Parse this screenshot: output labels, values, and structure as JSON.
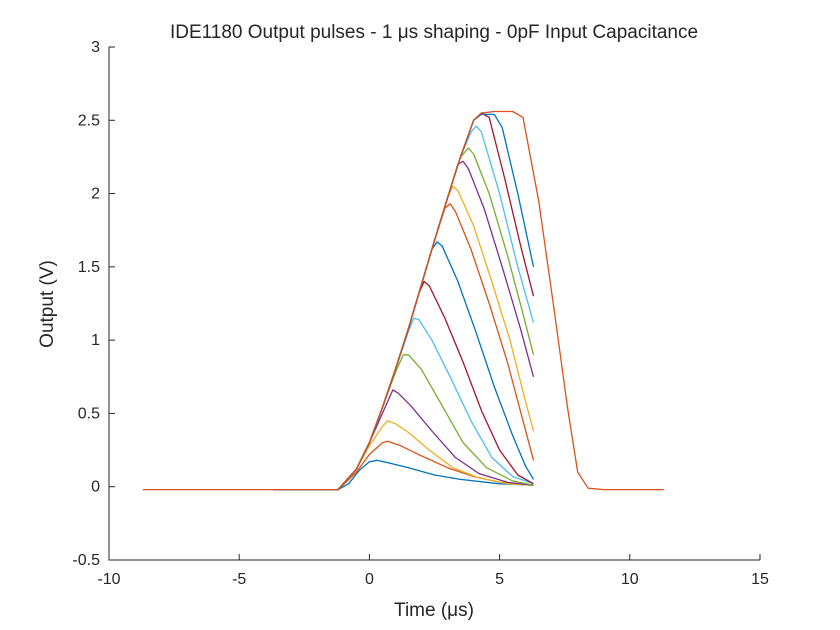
{
  "chart_data": {
    "type": "line",
    "title": "IDE1180 Output pulses - 1 μs shaping - 0pF Input Capacitance",
    "xlabel": "Time (μs)",
    "ylabel": "Output (V)",
    "xlim": [
      -10,
      15
    ],
    "ylim": [
      -0.5,
      3
    ],
    "xticks": [
      -10,
      -5,
      0,
      5,
      10,
      15
    ],
    "yticks": [
      -0.5,
      0,
      0.5,
      1,
      1.5,
      2,
      2.5,
      3
    ],
    "grid": false,
    "legend": "none",
    "series": [
      {
        "color": "#0072BD",
        "points": [
          [
            -3.7,
            -0.02
          ],
          [
            -1.2,
            -0.02
          ],
          [
            -0.8,
            0.02
          ],
          [
            -0.4,
            0.11
          ],
          [
            0.0,
            0.17
          ],
          [
            0.3,
            0.18
          ],
          [
            0.8,
            0.16
          ],
          [
            1.5,
            0.13
          ],
          [
            2.5,
            0.08
          ],
          [
            3.5,
            0.05
          ],
          [
            5.0,
            0.02
          ],
          [
            6.3,
            0.01
          ]
        ]
      },
      {
        "color": "#D95319",
        "points": [
          [
            -3.7,
            -0.02
          ],
          [
            -1.2,
            -0.02
          ],
          [
            -0.5,
            0.1
          ],
          [
            0.0,
            0.22
          ],
          [
            0.5,
            0.3
          ],
          [
            0.7,
            0.31
          ],
          [
            1.2,
            0.28
          ],
          [
            2.0,
            0.21
          ],
          [
            3.0,
            0.13
          ],
          [
            4.0,
            0.07
          ],
          [
            5.0,
            0.03
          ],
          [
            6.3,
            0.01
          ]
        ]
      },
      {
        "color": "#EDB120",
        "points": [
          [
            -3.7,
            -0.02
          ],
          [
            -1.2,
            -0.02
          ],
          [
            -0.5,
            0.12
          ],
          [
            0.0,
            0.28
          ],
          [
            0.5,
            0.41
          ],
          [
            0.7,
            0.45
          ],
          [
            1.0,
            0.43
          ],
          [
            1.5,
            0.37
          ],
          [
            2.3,
            0.25
          ],
          [
            3.2,
            0.13
          ],
          [
            4.2,
            0.06
          ],
          [
            5.3,
            0.02
          ],
          [
            6.3,
            0.01
          ]
        ]
      },
      {
        "color": "#7E2F8E",
        "points": [
          [
            -3.7,
            -0.02
          ],
          [
            -1.2,
            -0.02
          ],
          [
            -0.5,
            0.12
          ],
          [
            0.0,
            0.3
          ],
          [
            0.5,
            0.5
          ],
          [
            0.9,
            0.66
          ],
          [
            1.1,
            0.64
          ],
          [
            1.6,
            0.55
          ],
          [
            2.4,
            0.38
          ],
          [
            3.3,
            0.2
          ],
          [
            4.2,
            0.09
          ],
          [
            5.3,
            0.03
          ],
          [
            6.3,
            0.01
          ]
        ]
      },
      {
        "color": "#77AC30",
        "points": [
          [
            -3.7,
            -0.02
          ],
          [
            -1.2,
            -0.02
          ],
          [
            -0.5,
            0.12
          ],
          [
            0.0,
            0.3
          ],
          [
            0.5,
            0.54
          ],
          [
            1.0,
            0.78
          ],
          [
            1.3,
            0.9
          ],
          [
            1.5,
            0.9
          ],
          [
            2.0,
            0.8
          ],
          [
            2.8,
            0.55
          ],
          [
            3.6,
            0.3
          ],
          [
            4.5,
            0.13
          ],
          [
            5.5,
            0.04
          ],
          [
            6.3,
            0.01
          ]
        ]
      },
      {
        "color": "#4DBEEE",
        "points": [
          [
            -3.7,
            -0.02
          ],
          [
            -1.2,
            -0.02
          ],
          [
            -0.5,
            0.12
          ],
          [
            0.0,
            0.3
          ],
          [
            0.5,
            0.54
          ],
          [
            1.0,
            0.8
          ],
          [
            1.5,
            1.06
          ],
          [
            1.7,
            1.15
          ],
          [
            1.9,
            1.14
          ],
          [
            2.4,
            1.0
          ],
          [
            3.1,
            0.75
          ],
          [
            3.9,
            0.45
          ],
          [
            4.7,
            0.2
          ],
          [
            5.5,
            0.07
          ],
          [
            6.3,
            0.02
          ]
        ]
      },
      {
        "color": "#A2142F",
        "points": [
          [
            -3.7,
            -0.02
          ],
          [
            -1.2,
            -0.02
          ],
          [
            -0.5,
            0.12
          ],
          [
            0.0,
            0.3
          ],
          [
            0.5,
            0.54
          ],
          [
            1.0,
            0.8
          ],
          [
            1.5,
            1.08
          ],
          [
            1.9,
            1.32
          ],
          [
            2.1,
            1.4
          ],
          [
            2.3,
            1.37
          ],
          [
            2.9,
            1.15
          ],
          [
            3.6,
            0.85
          ],
          [
            4.3,
            0.52
          ],
          [
            5.0,
            0.25
          ],
          [
            5.7,
            0.08
          ],
          [
            6.3,
            0.02
          ]
        ]
      },
      {
        "color": "#0072BD",
        "points": [
          [
            -3.7,
            -0.02
          ],
          [
            -1.2,
            -0.02
          ],
          [
            -0.5,
            0.12
          ],
          [
            0.0,
            0.3
          ],
          [
            0.5,
            0.54
          ],
          [
            1.0,
            0.8
          ],
          [
            1.5,
            1.08
          ],
          [
            2.0,
            1.38
          ],
          [
            2.4,
            1.62
          ],
          [
            2.6,
            1.67
          ],
          [
            2.8,
            1.64
          ],
          [
            3.4,
            1.4
          ],
          [
            4.1,
            1.05
          ],
          [
            4.8,
            0.68
          ],
          [
            5.5,
            0.35
          ],
          [
            6.0,
            0.14
          ],
          [
            6.3,
            0.05
          ]
        ]
      },
      {
        "color": "#D95319",
        "points": [
          [
            -3.7,
            -0.02
          ],
          [
            -1.2,
            -0.02
          ],
          [
            -0.5,
            0.12
          ],
          [
            0.0,
            0.3
          ],
          [
            0.5,
            0.54
          ],
          [
            1.0,
            0.8
          ],
          [
            1.5,
            1.08
          ],
          [
            2.0,
            1.38
          ],
          [
            2.5,
            1.68
          ],
          [
            2.9,
            1.9
          ],
          [
            3.1,
            1.93
          ],
          [
            3.3,
            1.88
          ],
          [
            3.9,
            1.62
          ],
          [
            4.6,
            1.25
          ],
          [
            5.3,
            0.85
          ],
          [
            5.9,
            0.45
          ],
          [
            6.3,
            0.18
          ]
        ]
      },
      {
        "color": "#EDB120",
        "points": [
          [
            -3.7,
            -0.02
          ],
          [
            -1.2,
            -0.02
          ],
          [
            -0.5,
            0.12
          ],
          [
            0.0,
            0.3
          ],
          [
            0.5,
            0.54
          ],
          [
            1.0,
            0.8
          ],
          [
            1.5,
            1.08
          ],
          [
            2.0,
            1.38
          ],
          [
            2.5,
            1.68
          ],
          [
            3.0,
            1.97
          ],
          [
            3.2,
            2.05
          ],
          [
            3.4,
            2.02
          ],
          [
            4.0,
            1.78
          ],
          [
            4.7,
            1.4
          ],
          [
            5.4,
            1.0
          ],
          [
            6.0,
            0.58
          ],
          [
            6.3,
            0.38
          ]
        ]
      },
      {
        "color": "#7E2F8E",
        "points": [
          [
            -3.7,
            -0.02
          ],
          [
            -1.2,
            -0.02
          ],
          [
            -0.5,
            0.12
          ],
          [
            0.0,
            0.3
          ],
          [
            0.5,
            0.54
          ],
          [
            1.0,
            0.8
          ],
          [
            1.5,
            1.08
          ],
          [
            2.0,
            1.38
          ],
          [
            2.5,
            1.68
          ],
          [
            3.0,
            1.97
          ],
          [
            3.4,
            2.2
          ],
          [
            3.6,
            2.22
          ],
          [
            3.8,
            2.17
          ],
          [
            4.4,
            1.9
          ],
          [
            5.1,
            1.5
          ],
          [
            5.8,
            1.08
          ],
          [
            6.3,
            0.75
          ]
        ]
      },
      {
        "color": "#77AC30",
        "points": [
          [
            -3.7,
            -0.02
          ],
          [
            -1.2,
            -0.02
          ],
          [
            -0.5,
            0.12
          ],
          [
            0.0,
            0.3
          ],
          [
            0.5,
            0.54
          ],
          [
            1.0,
            0.8
          ],
          [
            1.5,
            1.08
          ],
          [
            2.0,
            1.38
          ],
          [
            2.5,
            1.68
          ],
          [
            3.0,
            1.97
          ],
          [
            3.5,
            2.25
          ],
          [
            3.8,
            2.31
          ],
          [
            4.0,
            2.27
          ],
          [
            4.6,
            2.0
          ],
          [
            5.3,
            1.58
          ],
          [
            5.9,
            1.18
          ],
          [
            6.3,
            0.9
          ]
        ]
      },
      {
        "color": "#4DBEEE",
        "points": [
          [
            -3.7,
            -0.02
          ],
          [
            -1.2,
            -0.02
          ],
          [
            -0.5,
            0.12
          ],
          [
            0.0,
            0.3
          ],
          [
            0.5,
            0.54
          ],
          [
            1.0,
            0.8
          ],
          [
            1.5,
            1.08
          ],
          [
            2.0,
            1.38
          ],
          [
            2.5,
            1.68
          ],
          [
            3.0,
            1.97
          ],
          [
            3.5,
            2.25
          ],
          [
            3.9,
            2.42
          ],
          [
            4.1,
            2.46
          ],
          [
            4.3,
            2.42
          ],
          [
            5.0,
            2.0
          ],
          [
            5.7,
            1.5
          ],
          [
            6.3,
            1.12
          ]
        ]
      },
      {
        "color": "#A2142F",
        "points": [
          [
            -3.7,
            -0.02
          ],
          [
            -1.2,
            -0.02
          ],
          [
            -0.5,
            0.12
          ],
          [
            0.0,
            0.3
          ],
          [
            0.5,
            0.54
          ],
          [
            1.0,
            0.8
          ],
          [
            1.5,
            1.08
          ],
          [
            2.0,
            1.38
          ],
          [
            2.5,
            1.68
          ],
          [
            3.0,
            1.97
          ],
          [
            3.5,
            2.25
          ],
          [
            4.0,
            2.5
          ],
          [
            4.3,
            2.55
          ],
          [
            4.6,
            2.52
          ],
          [
            5.2,
            2.1
          ],
          [
            5.8,
            1.65
          ],
          [
            6.3,
            1.3
          ]
        ]
      },
      {
        "color": "#0072BD",
        "points": [
          [
            -3.7,
            -0.02
          ],
          [
            -1.2,
            -0.02
          ],
          [
            -0.5,
            0.12
          ],
          [
            0.0,
            0.3
          ],
          [
            0.5,
            0.54
          ],
          [
            1.0,
            0.8
          ],
          [
            1.5,
            1.08
          ],
          [
            2.0,
            1.38
          ],
          [
            2.5,
            1.68
          ],
          [
            3.0,
            1.97
          ],
          [
            3.5,
            2.25
          ],
          [
            4.0,
            2.5
          ],
          [
            4.3,
            2.54
          ],
          [
            4.8,
            2.54
          ],
          [
            5.1,
            2.45
          ],
          [
            5.7,
            2.0
          ],
          [
            6.3,
            1.5
          ]
        ]
      },
      {
        "color": "#D95319",
        "points": [
          [
            -8.7,
            -0.02
          ],
          [
            -1.2,
            -0.02
          ],
          [
            -0.5,
            0.12
          ],
          [
            0.0,
            0.3
          ],
          [
            0.5,
            0.54
          ],
          [
            1.0,
            0.8
          ],
          [
            1.5,
            1.08
          ],
          [
            2.0,
            1.38
          ],
          [
            2.5,
            1.68
          ],
          [
            3.0,
            1.97
          ],
          [
            3.5,
            2.25
          ],
          [
            4.0,
            2.5
          ],
          [
            4.3,
            2.55
          ],
          [
            4.8,
            2.56
          ],
          [
            5.5,
            2.56
          ],
          [
            5.9,
            2.52
          ],
          [
            6.5,
            1.95
          ],
          [
            7.1,
            1.2
          ],
          [
            7.6,
            0.55
          ],
          [
            8.0,
            0.1
          ],
          [
            8.4,
            -0.01
          ],
          [
            9.0,
            -0.02
          ],
          [
            11.3,
            -0.02
          ]
        ]
      }
    ]
  }
}
